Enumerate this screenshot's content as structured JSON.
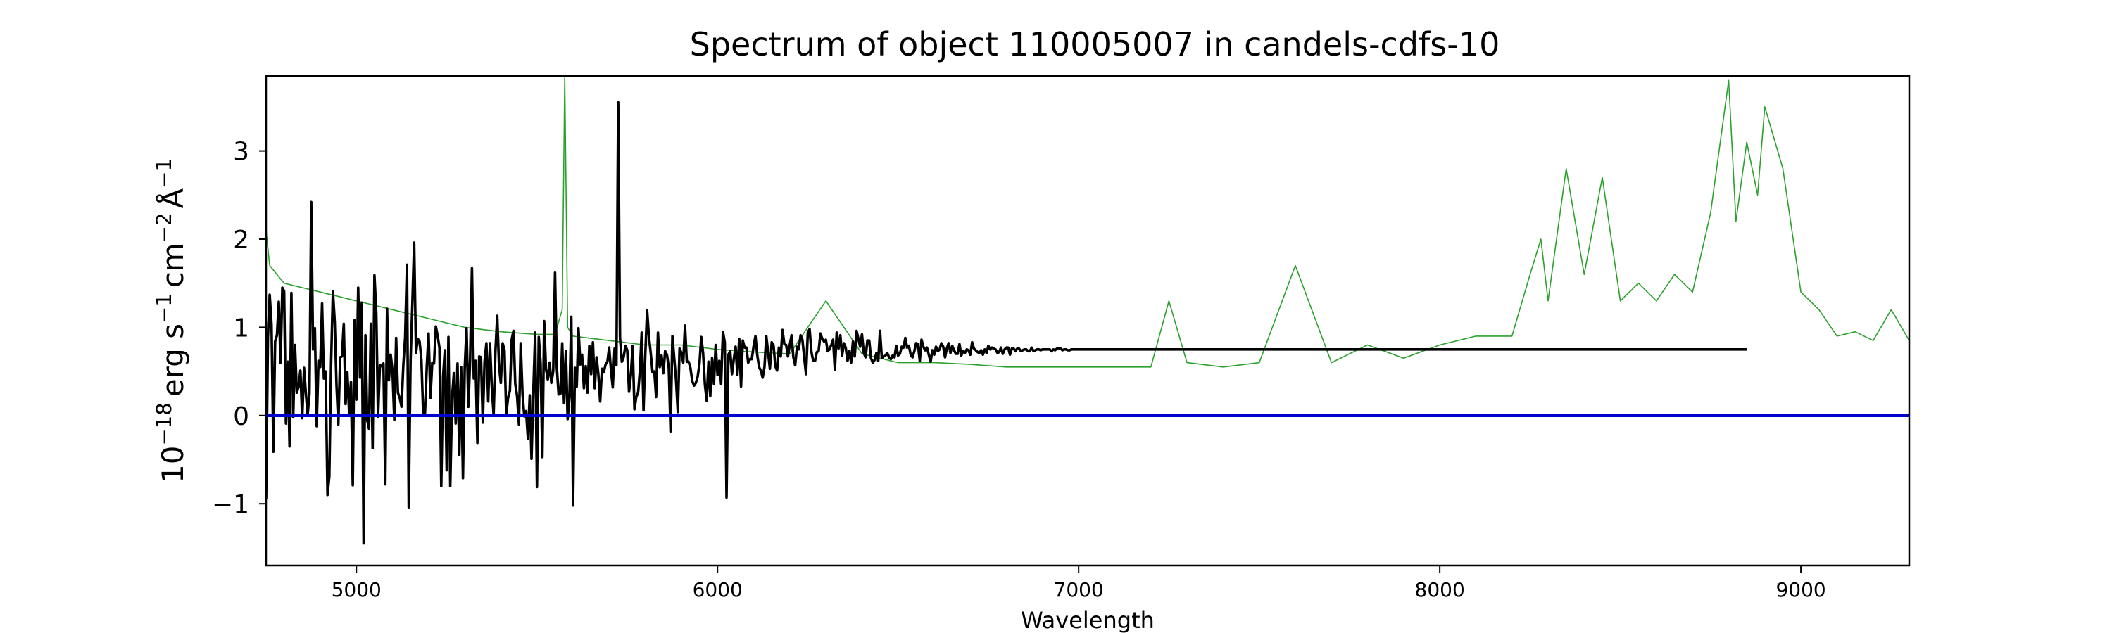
{
  "chart_data": {
    "type": "line",
    "title": "Spectrum of object 110005007 in candels-cdfs-10",
    "xlabel": "Wavelength",
    "ylabel": {
      "base": "10",
      "exp": "−18",
      "erg": "erg s",
      "s_exp": "−1",
      "cm": "cm",
      "cm_exp": "−2",
      "ang": "Å",
      "ang_exp": "−1"
    },
    "xlim": [
      4750,
      9300
    ],
    "ylim": [
      -1.7,
      3.85
    ],
    "xticks": [
      5000,
      6000,
      7000,
      8000,
      9000
    ],
    "yticks": [
      -1,
      0,
      1,
      2,
      3
    ],
    "ytick_labels": [
      "−1",
      "0",
      "1",
      "2",
      "3"
    ],
    "grid": false,
    "series": [
      {
        "role": "noise",
        "color": "#2ca02c",
        "x": [
          4750,
          4760,
          4800,
          4850,
          4900,
          5000,
          5100,
          5200,
          5300,
          5400,
          5500,
          5550,
          5570,
          5577,
          5585,
          5600,
          5700,
          5800,
          5900,
          6000,
          6100,
          6200,
          6300,
          6400,
          6500,
          6600,
          6700,
          6800,
          6900,
          7000,
          7100,
          7200,
          7250,
          7300,
          7400,
          7500,
          7600,
          7700,
          7800,
          7900,
          8000,
          8100,
          8200,
          8250,
          8280,
          8300,
          8350,
          8400,
          8450,
          8500,
          8550,
          8600,
          8650,
          8700,
          8750,
          8800,
          8820,
          8850,
          8880,
          8900,
          8950,
          9000,
          9050,
          9100,
          9150,
          9200,
          9250,
          9300
        ],
        "y": [
          2.1,
          1.7,
          1.5,
          1.45,
          1.4,
          1.3,
          1.2,
          1.1,
          1.0,
          0.95,
          0.92,
          0.92,
          1.2,
          3.85,
          1.0,
          0.9,
          0.85,
          0.8,
          0.8,
          0.75,
          0.72,
          0.7,
          1.3,
          0.7,
          0.6,
          0.6,
          0.58,
          0.55,
          0.55,
          0.55,
          0.55,
          0.55,
          1.3,
          0.6,
          0.55,
          0.6,
          1.7,
          0.6,
          0.8,
          0.65,
          0.8,
          0.9,
          0.9,
          1.6,
          2.0,
          1.3,
          2.8,
          1.6,
          2.7,
          1.3,
          1.5,
          1.3,
          1.6,
          1.4,
          2.3,
          3.8,
          2.2,
          3.1,
          2.5,
          3.5,
          2.8,
          1.4,
          1.2,
          0.9,
          0.95,
          0.85,
          1.2,
          0.85
        ]
      },
      {
        "role": "flux",
        "color": "#000000",
        "x_start": 4750,
        "x_step": 5,
        "y": [
          -0.95,
          0.89,
          1.37,
          1.03,
          -0.41,
          0.84,
          0.91,
          1.29,
          0.6,
          1.45,
          1.41,
          -0.09,
          0.61,
          -0.35,
          1.39,
          -0.02,
          0.8,
          0.26,
          0.33,
          0.51,
          -0.03,
          0.54,
          0.26,
          0.01,
          0.25,
          2.42,
          0.75,
          0.99,
          -0.12,
          0.62,
          0.55,
          1.27,
          0.42,
          0.5,
          -0.9,
          -0.69,
          0.59,
          1.41,
          1.06,
          0.34,
          -0.1,
          0.66,
          0.67,
          1.04,
          0.13,
          0.49,
          0.02,
          0.38,
          -0.79,
          1.08,
          0.18,
          1.45,
          0.43,
          1.28,
          -1.45,
          0.91,
          -0.05,
          -0.15,
          1.04,
          -0.37,
          1.59,
          1.16,
          -0.02,
          0.57,
          0.56,
          0.59,
          -0.78,
          1.21,
          0.4,
          0.69,
          0.51,
          -0.05,
          0.88,
          0.26,
          0.2,
          0.1,
          0.57,
          0.89,
          1.71,
          -1.04,
          0.63,
          1.28,
          1.96,
          0.71,
          0.87,
          0.84,
          0.63,
          0.02,
          0.03,
          0.57,
          0.93,
          0.2,
          0.6,
          0.59,
          1.01,
          0.9,
          0.77,
          -0.8,
          0.44,
          0.74,
          -0.62,
          0.89,
          -0.8,
          0.21,
          0.48,
          -0.09,
          0.59,
          -0.45,
          0.55,
          -0.71,
          0.53,
          0.99,
          0.1,
          0.64,
          1.67,
          0.42,
          0.62,
          -0.31,
          0.67,
          0.66,
          -0.08,
          0.61,
          0.82,
          0.16,
          0.82,
          0.32,
          0.01,
          0.72,
          1.13,
          0.56,
          0.37,
          0.82,
          0.74,
          0.02,
          0.2,
          0.28,
          0.86,
          0.96,
          0.36,
          0.22,
          -0.1,
          0.82,
          0.25,
          -0.01,
          0.05,
          -0.26,
          0.23,
          -0.49,
          0.28,
          0.94,
          -0.81,
          0.89,
          0.59,
          -0.47,
          1.07,
          0.53,
          0.41,
          0.6,
          0.37,
          0.5,
          1.62,
          0.55,
          0.24,
          0.25,
          0.82,
          0.14,
          0.73,
          -0.04,
          0.21,
          1.12,
          -1.02,
          0.54,
          0.33,
          0.99,
          0.58,
          0.69,
          0.31,
          0.56,
          0.26,
          0.79,
          0.47,
          0.83,
          0.31,
          0.66,
          0.47,
          0.16,
          0.53,
          0.49,
          0.58,
          0.61,
          0.77,
          0.51,
          0.32,
          0.76,
          0.57,
          3.55,
          0.88,
          0.61,
          0.66,
          0.79,
          0.74,
          0.27,
          0.46,
          0.79,
          0.07,
          0.21,
          0.26,
          0.5,
          0.94,
          0.06,
          0.69,
          1.19,
          0.9,
          0.71,
          0.49,
          0.5,
          0.21,
          0.94,
          0.55,
          0.68,
          0.48,
          0.73,
          0.69,
          0.54,
          -0.18,
          0.9,
          0.65,
          0.41,
          0.04,
          0.76,
          0.71,
          0.6,
          1.02,
          0.61,
          0.61,
          0.54,
          0.39,
          0.34,
          0.37,
          0.44,
          0.59,
          0.89,
          0.71,
          0.35,
          0.17,
          0.61,
          0.22,
          0.65,
          0.36,
          0.8,
          0.46,
          0.62,
          0.36,
          0.95,
          0.83,
          -0.93,
          0.69,
          0.73,
          0.47,
          0.64,
          0.78,
          0.46,
          0.87,
          0.33,
          0.85,
          0.77,
          0.77,
          0.6,
          0.64,
          0.64,
          0.79,
          0.9,
          0.69,
          0.55,
          0.51,
          0.43,
          0.55,
          0.9,
          0.72,
          0.53,
          0.83,
          0.8,
          0.56,
          0.51,
          0.77,
          0.67,
          0.97,
          0.81,
          0.8,
          0.67,
          0.8,
          0.91,
          0.66,
          0.57,
          0.78,
          0.75,
          0.91,
          0.86,
          0.66,
          0.47,
          0.94,
          0.98,
          0.72,
          0.62,
          0.62,
          0.72,
          0.73,
          0.93,
          0.87,
          0.84,
          0.86,
          0.73,
          0.75,
          0.8,
          0.86,
          0.52,
          0.94,
          0.76,
          0.91,
          0.68,
          0.82,
          0.77,
          0.62,
          0.73,
          0.6,
          0.84,
          0.67,
          0.96,
          0.87,
          0.78,
          0.92,
          0.71,
          0.66,
          0.85,
          0.85,
          0.65,
          0.6,
          0.63,
          0.71,
          0.62,
          0.96,
          0.65,
          0.67,
          0.68,
          0.71,
          0.66,
          0.64,
          0.68,
          0.66,
          0.79,
          0.68,
          0.7,
          0.78,
          0.77,
          0.88,
          0.77,
          0.79,
          0.69,
          0.66,
          0.73,
          0.82,
          0.81,
          0.62,
          0.86,
          0.78,
          0.74,
          0.77,
          0.69,
          0.61,
          0.74,
          0.69,
          0.78,
          0.73,
          0.75,
          0.82,
          0.78,
          0.66,
          0.76,
          0.82,
          0.71,
          0.79,
          0.74,
          0.7,
          0.7,
          0.81,
          0.68,
          0.73,
          0.71,
          0.75,
          0.74,
          0.69,
          0.83,
          0.76,
          0.74,
          0.72,
          0.71,
          0.74,
          0.69,
          0.75,
          0.71,
          0.79,
          0.75,
          0.77,
          0.76,
          0.75,
          0.71,
          0.72,
          0.77,
          0.7,
          0.75,
          0.77,
          0.77,
          0.69,
          0.76,
          0.76,
          0.73,
          0.76,
          0.76,
          0.73,
          0.74,
          0.75,
          0.75,
          0.73,
          0.73,
          0.77,
          0.73,
          0.74,
          0.75,
          0.75,
          0.74,
          0.75,
          0.75,
          0.75,
          0.75,
          0.75,
          0.73,
          0.75,
          0.74,
          0.76,
          0.76,
          0.76,
          0.74,
          0.75,
          0.75,
          0.74,
          0.74,
          0.75,
          0.75,
          0.75,
          0.75,
          0.75,
          0.75,
          0.75,
          0.75,
          0.75,
          0.75,
          0.75,
          0.75,
          0.75,
          0.75,
          0.75,
          0.75,
          0.75,
          0.75,
          0.75,
          0.75,
          0.75,
          0.75,
          0.75,
          0.75,
          0.75,
          0.75,
          0.75,
          0.75,
          0.75,
          0.75,
          0.75,
          0.75,
          0.75,
          0.75,
          0.75,
          0.75,
          0.75,
          0.75,
          0.75,
          0.75,
          0.75,
          0.75,
          0.75,
          0.75,
          0.75,
          0.75,
          0.75,
          0.75,
          0.75,
          0.75,
          0.75,
          0.75,
          0.75,
          0.75,
          0.75,
          0.75,
          0.75,
          0.75,
          0.75,
          0.75,
          0.75,
          0.75,
          0.75,
          0.75,
          0.75,
          0.75,
          0.75,
          0.75,
          0.75,
          0.75,
          0.75,
          0.75,
          0.75,
          0.75,
          0.75,
          0.75,
          0.75,
          0.75,
          0.75,
          0.75,
          0.75,
          0.75,
          0.75,
          0.75,
          0.75,
          0.75,
          0.75,
          0.75,
          0.75,
          0.75,
          0.75,
          0.75,
          0.75,
          0.75,
          0.75,
          0.75,
          0.75,
          0.75,
          0.75,
          0.75,
          0.75,
          0.75,
          0.75,
          0.75,
          0.75,
          0.75,
          0.75,
          0.75,
          0.75,
          0.75,
          0.75,
          0.75,
          0.75,
          0.75,
          0.75,
          0.75,
          0.75,
          0.75,
          0.75,
          0.75,
          0.75,
          0.75,
          0.75,
          0.75,
          0.75,
          0.75,
          0.75,
          0.75,
          0.75,
          0.75,
          0.75,
          0.75,
          0.75,
          0.75,
          0.75,
          0.75,
          0.75,
          0.75,
          0.75,
          0.75,
          0.75,
          0.75,
          0.75,
          0.75,
          0.75,
          0.75,
          0.75,
          0.75,
          0.75,
          0.75,
          0.75,
          0.75,
          0.75,
          0.75,
          0.75,
          0.75,
          0.75,
          0.75,
          0.75,
          0.75,
          0.75,
          0.75,
          0.75,
          0.75,
          0.75,
          0.75,
          0.75,
          0.75,
          0.75,
          0.75,
          0.75,
          0.75,
          0.75,
          0.75,
          0.75,
          0.75,
          0.75,
          0.75,
          0.75,
          0.75,
          0.75,
          0.75,
          0.75,
          0.75,
          0.75,
          0.75,
          0.75,
          0.75,
          0.75,
          0.75,
          0.75,
          0.75,
          0.75,
          0.75,
          0.75,
          0.75,
          0.75,
          0.75,
          0.75,
          0.75,
          0.75,
          0.75,
          0.75,
          0.75,
          0.75,
          0.75,
          0.75,
          0.75,
          0.75,
          0.75,
          0.75,
          0.75,
          0.75,
          0.75,
          0.75,
          0.75,
          0.75,
          0.75,
          0.75,
          0.75,
          0.75,
          0.75,
          0.75,
          0.75,
          0.75,
          0.75,
          0.75,
          0.75,
          0.75,
          0.75,
          0.75,
          0.75,
          0.75,
          0.75,
          0.75,
          0.75,
          0.75,
          0.75,
          0.75,
          0.75,
          0.75,
          0.75,
          0.75,
          0.75,
          0.75,
          0.75,
          0.75,
          0.75,
          0.75,
          0.75,
          0.75,
          0.75,
          0.75,
          0.75,
          0.75,
          0.75,
          0.75,
          0.75,
          0.75,
          0.75,
          0.75,
          0.75,
          0.75,
          0.75,
          0.75,
          0.75,
          0.75,
          0.75,
          0.75,
          0.75,
          0.75,
          0.75,
          0.75,
          0.75,
          0.75,
          0.75,
          0.75,
          0.75,
          0.75,
          0.75,
          0.75,
          0.75,
          0.75,
          0.75,
          0.75,
          0.75,
          0.75,
          0.75,
          0.75,
          0.75,
          0.75,
          0.75,
          0.75,
          0.75,
          0.75,
          0.75,
          0.75,
          0.75,
          0.75,
          0.75,
          0.75,
          0.75,
          0.75,
          0.75,
          0.75,
          0.75,
          0.75,
          0.75,
          0.75,
          0.75,
          0.75,
          0.75,
          0.75,
          0.75,
          0.75,
          0.75,
          0.75,
          0.75,
          0.75,
          0.75,
          0.75,
          0.75,
          0.75,
          0.75,
          0.75,
          0.75,
          0.75,
          0.75,
          0.75,
          0.75,
          0.75,
          0.75,
          0.75,
          0.75,
          0.75,
          0.75,
          0.75,
          0.75,
          0.75,
          0.75,
          0.75,
          0.75,
          0.75,
          0.75,
          0.75,
          0.75,
          0.75,
          0.75,
          0.75,
          0.75,
          0.75,
          0.75,
          0.75,
          0.75,
          0.75,
          0.75,
          0.75,
          0.75,
          0.75,
          0.75,
          0.75,
          0.75,
          0.75,
          0.75,
          0.75,
          0.75,
          0.75,
          0.75,
          0.75,
          0.75,
          0.75,
          0.75,
          0.75,
          0.75,
          0.75
        ]
      },
      {
        "role": "zero-level",
        "color": "#0000cc",
        "x": [
          4750,
          9300
        ],
        "y": [
          0,
          0
        ]
      }
    ]
  }
}
